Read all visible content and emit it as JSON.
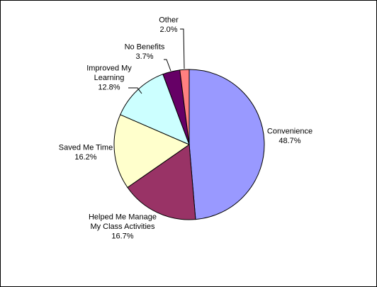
{
  "chart_data": {
    "type": "pie",
    "title": "",
    "legend": "none",
    "start_angle_deg": 0,
    "direction": "clockwise",
    "slices": [
      {
        "label": [
          "Convenience"
        ],
        "value": 48.7,
        "value_label": "48.7%",
        "color": "#9999ff"
      },
      {
        "label": [
          "Helped Me Manage",
          "My Class Activities"
        ],
        "value": 16.7,
        "value_label": "16.7%",
        "color": "#993366"
      },
      {
        "label": [
          "Saved Me Time"
        ],
        "value": 16.2,
        "value_label": "16.2%",
        "color": "#ffffcc"
      },
      {
        "label": [
          "Improved My",
          "Learning"
        ],
        "value": 12.8,
        "value_label": "12.8%",
        "color": "#ccffff"
      },
      {
        "label": [
          "No Benefits"
        ],
        "value": 3.7,
        "value_label": "3.7%",
        "color": "#660066"
      },
      {
        "label": [
          "Other"
        ],
        "value": 2.0,
        "value_label": "2.0%",
        "color": "#ff8080"
      }
    ]
  }
}
